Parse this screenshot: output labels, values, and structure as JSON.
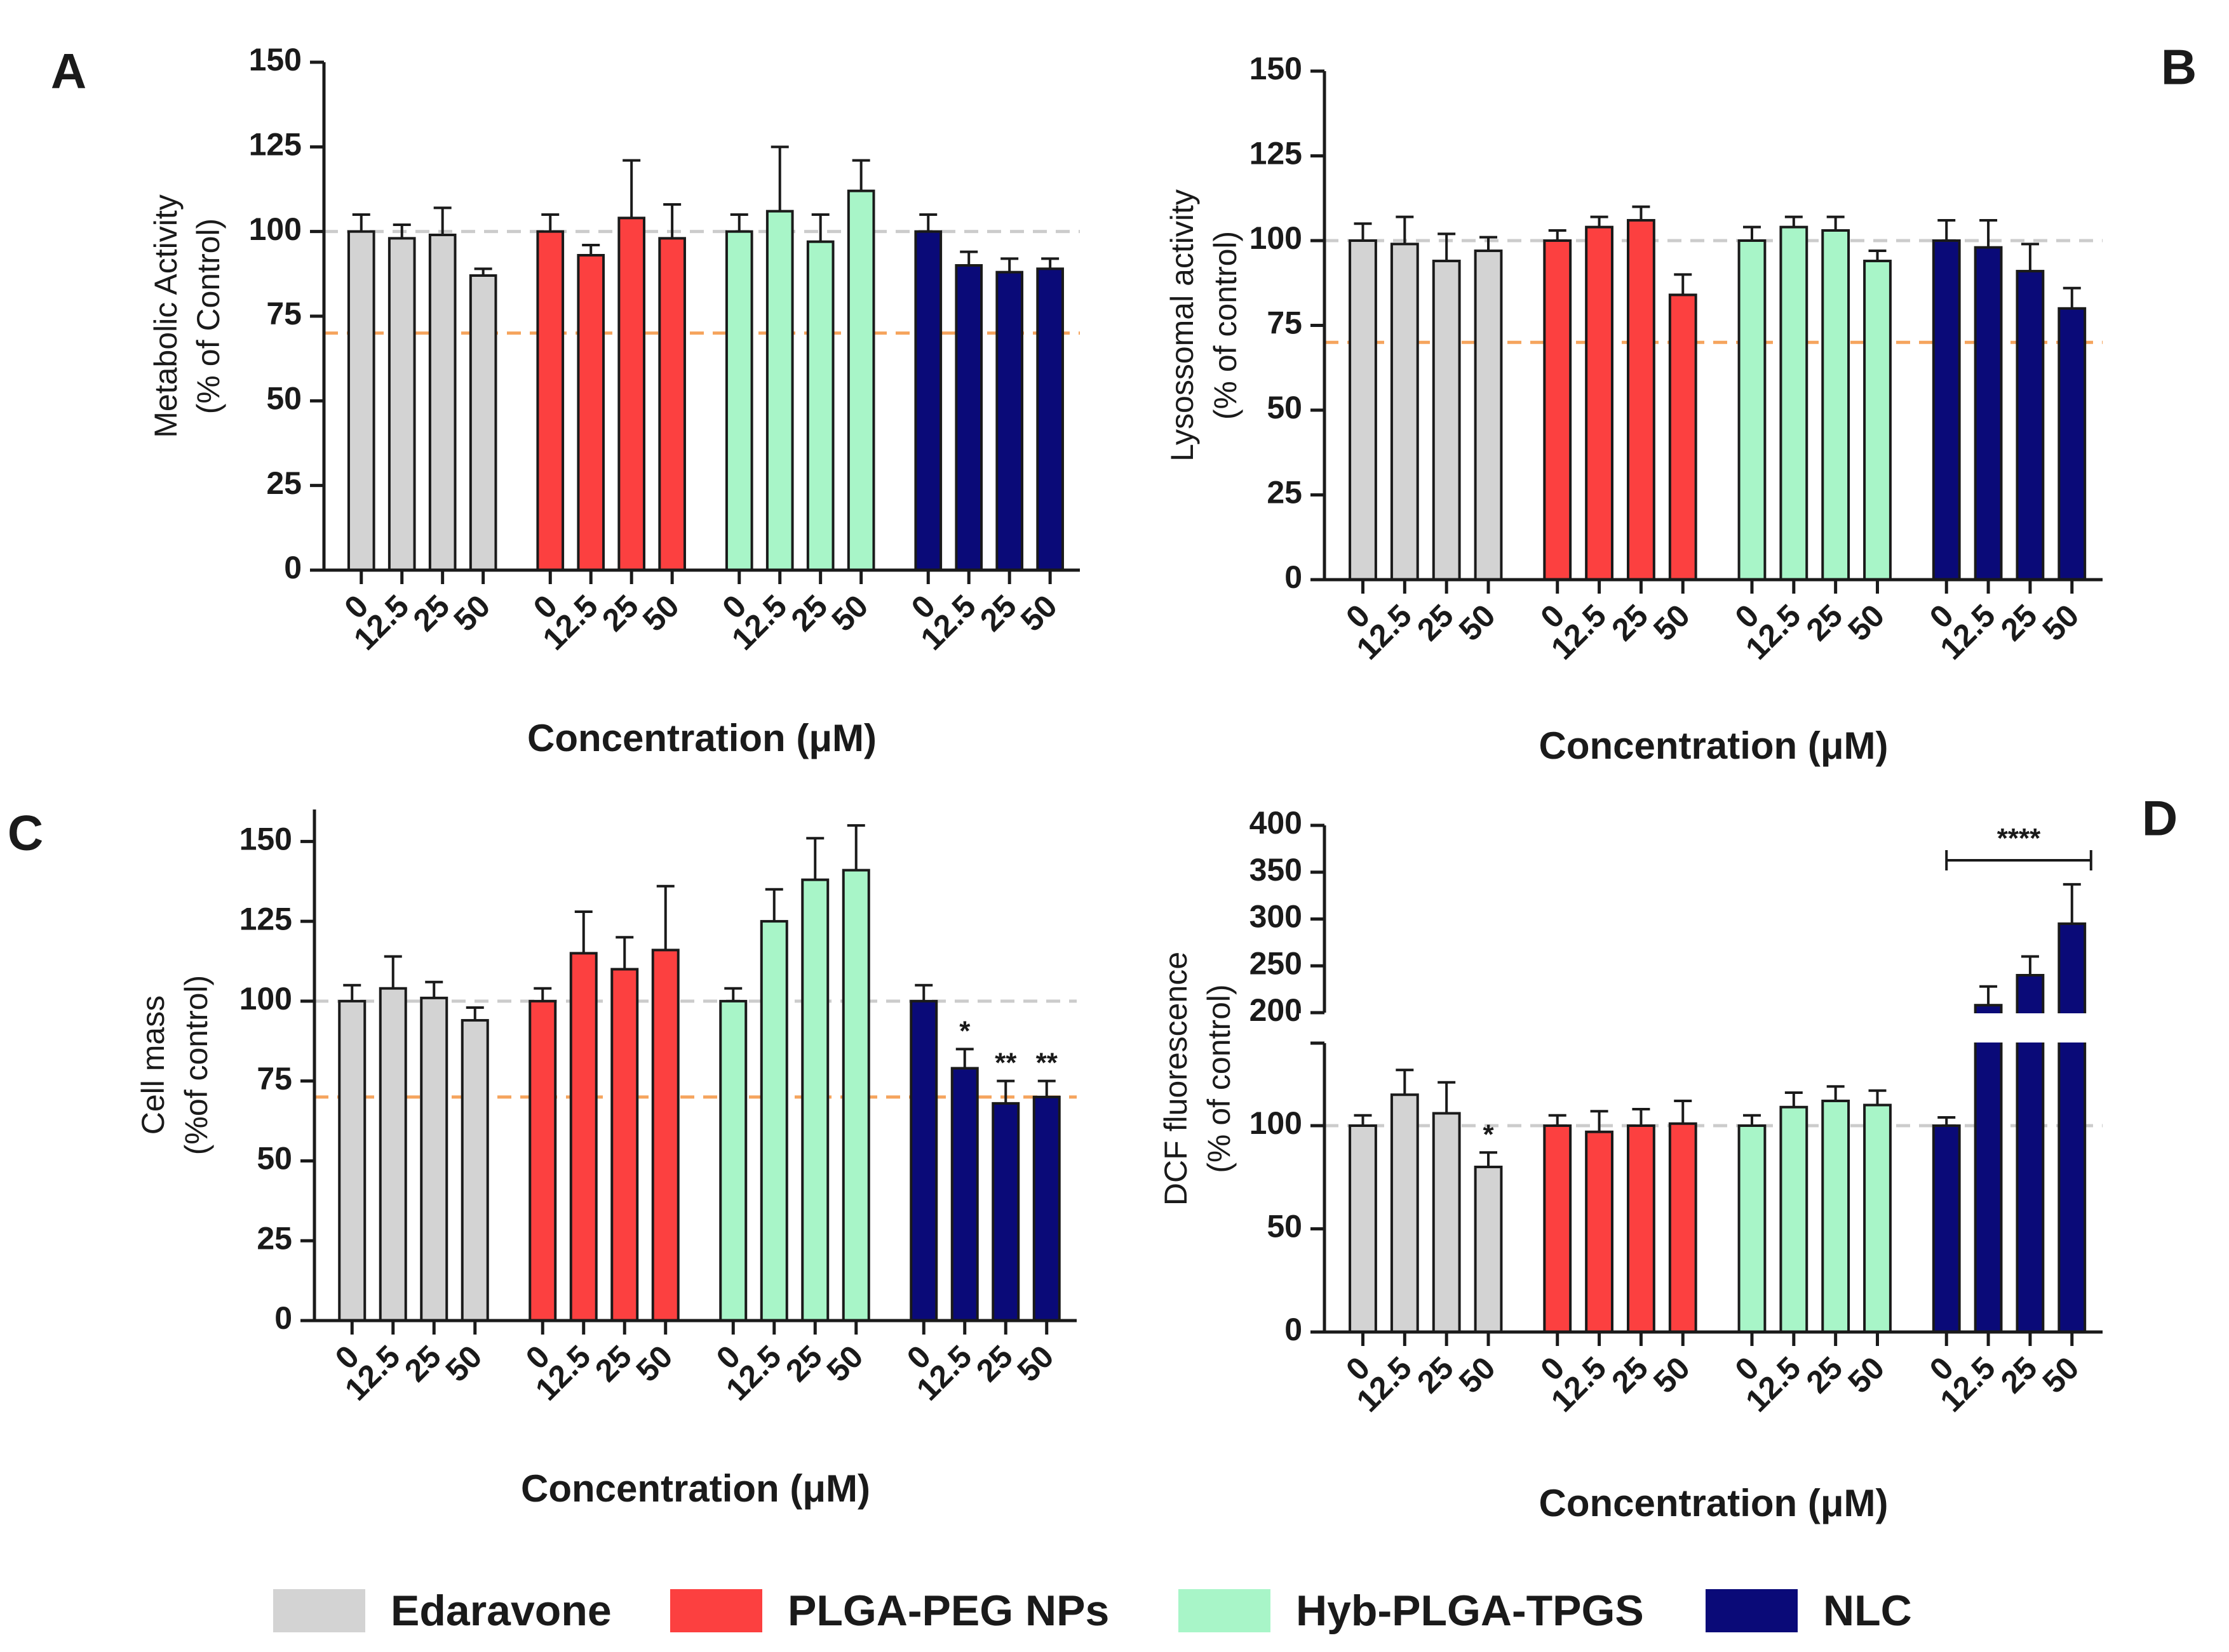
{
  "colors": {
    "Edaravone": "#d3d3d3",
    "PLGA-PEG NPs": "#fc4040",
    "Hyb-PLGA-TPGS": "#a8f5c8",
    "NLC": "#0a0a78",
    "control_line": "#cccccc",
    "threshold_line": "#f5a45d"
  },
  "legend": {
    "items": [
      {
        "label": "Edaravone",
        "color": "#d3d3d3"
      },
      {
        "label": "PLGA-PEG NPs",
        "color": "#fc4040"
      },
      {
        "label": "Hyb-PLGA-TPGS",
        "color": "#a8f5c8"
      },
      {
        "label": "NLC",
        "color": "#0a0a78"
      }
    ]
  },
  "chart_data": [
    {
      "panel": "A",
      "type": "bar",
      "ylabel_line1": "Metabolic Activity",
      "ylabel_line2": "(% of Control)",
      "xlabel": "Concentration (μM)",
      "ylim": [
        0,
        150
      ],
      "yticks": [
        "0",
        "25",
        "50",
        "75",
        "100",
        "125",
        "150"
      ],
      "categories": [
        "0",
        "12.5",
        "25",
        "50"
      ],
      "control_line": 100,
      "threshold_line": 70,
      "series": [
        {
          "name": "Edaravone",
          "values": [
            100,
            98,
            99,
            87
          ],
          "errors": [
            5,
            4,
            8,
            2
          ],
          "annotations": [
            "",
            "",
            "",
            ""
          ]
        },
        {
          "name": "PLGA-PEG NPs",
          "values": [
            100,
            93,
            104,
            98
          ],
          "errors": [
            5,
            3,
            17,
            10
          ],
          "annotations": [
            "",
            "",
            "",
            ""
          ]
        },
        {
          "name": "Hyb-PLGA-TPGS",
          "values": [
            100,
            106,
            97,
            112
          ],
          "errors": [
            5,
            19,
            8,
            9
          ],
          "annotations": [
            "",
            "",
            "",
            ""
          ]
        },
        {
          "name": "NLC",
          "values": [
            100,
            90,
            88,
            89
          ],
          "errors": [
            5,
            4,
            4,
            3
          ],
          "annotations": [
            "",
            "",
            "",
            ""
          ]
        }
      ]
    },
    {
      "panel": "B",
      "type": "bar",
      "ylabel_line1": "Lysossomal activity",
      "ylabel_line2": "(% of control)",
      "xlabel": "Concentration (μM)",
      "ylim": [
        0,
        150
      ],
      "yticks": [
        "0",
        "25",
        "50",
        "75",
        "100",
        "125",
        "150"
      ],
      "categories": [
        "0",
        "12.5",
        "25",
        "50"
      ],
      "control_line": 100,
      "threshold_line": 70,
      "series": [
        {
          "name": "Edaravone",
          "values": [
            100,
            99,
            94,
            97
          ],
          "errors": [
            5,
            8,
            8,
            4
          ],
          "annotations": [
            "",
            "",
            "",
            ""
          ]
        },
        {
          "name": "PLGA-PEG NPs",
          "values": [
            100,
            104,
            106,
            84
          ],
          "errors": [
            3,
            3,
            4,
            6
          ],
          "annotations": [
            "",
            "",
            "",
            ""
          ]
        },
        {
          "name": "Hyb-PLGA-TPGS",
          "values": [
            100,
            104,
            103,
            94
          ],
          "errors": [
            4,
            3,
            4,
            3
          ],
          "annotations": [
            "",
            "",
            "",
            ""
          ]
        },
        {
          "name": "NLC",
          "values": [
            100,
            98,
            91,
            80
          ],
          "errors": [
            6,
            8,
            8,
            6
          ],
          "annotations": [
            "",
            "",
            "",
            ""
          ]
        }
      ]
    },
    {
      "panel": "C",
      "type": "bar",
      "ylabel_line1": "Cell mass",
      "ylabel_line2": "(%of control)",
      "xlabel": "Concentration (μM)",
      "ylim": [
        0,
        160
      ],
      "yticks": [
        "0",
        "25",
        "50",
        "75",
        "100",
        "125",
        "150"
      ],
      "categories": [
        "0",
        "12.5",
        "25",
        "50"
      ],
      "control_line": 100,
      "threshold_line": 70,
      "series": [
        {
          "name": "Edaravone",
          "values": [
            100,
            104,
            101,
            94
          ],
          "errors": [
            5,
            10,
            5,
            4
          ],
          "annotations": [
            "",
            "",
            "",
            ""
          ]
        },
        {
          "name": "PLGA-PEG NPs",
          "values": [
            100,
            115,
            110,
            116
          ],
          "errors": [
            4,
            13,
            10,
            20
          ],
          "annotations": [
            "",
            "",
            "",
            ""
          ]
        },
        {
          "name": "Hyb-PLGA-TPGS",
          "values": [
            100,
            125,
            138,
            141
          ],
          "errors": [
            4,
            10,
            13,
            14
          ],
          "annotations": [
            "",
            "",
            "",
            ""
          ]
        },
        {
          "name": "NLC",
          "values": [
            100,
            79,
            68,
            70
          ],
          "errors": [
            5,
            6,
            7,
            5
          ],
          "annotations": [
            "",
            "*",
            "**",
            "**"
          ]
        }
      ]
    },
    {
      "panel": "D",
      "type": "bar",
      "ylabel_line1": "DCF fluorescence",
      "ylabel_line2": "(% of control)",
      "xlabel": "Concentration (μM)",
      "ylim": [
        0,
        400
      ],
      "yaxis_break": [
        140,
        200
      ],
      "yticks": [
        "0",
        "50",
        "100",
        "200",
        "250",
        "300",
        "350",
        "400"
      ],
      "categories": [
        "0",
        "12.5",
        "25",
        "50"
      ],
      "control_line": 100,
      "significance_bracket": {
        "group": "NLC",
        "label": "****"
      },
      "series": [
        {
          "name": "Edaravone",
          "values": [
            100,
            115,
            106,
            80
          ],
          "errors": [
            5,
            12,
            15,
            7
          ],
          "annotations": [
            "",
            "",
            "",
            "*"
          ]
        },
        {
          "name": "PLGA-PEG NPs",
          "values": [
            100,
            97,
            100,
            101
          ],
          "errors": [
            5,
            10,
            8,
            11
          ],
          "annotations": [
            "",
            "",
            "",
            ""
          ]
        },
        {
          "name": "Hyb-PLGA-TPGS",
          "values": [
            100,
            109,
            112,
            110
          ],
          "errors": [
            5,
            7,
            7,
            7
          ],
          "annotations": [
            "",
            "",
            "",
            ""
          ]
        },
        {
          "name": "NLC",
          "values": [
            100,
            208,
            240,
            295
          ],
          "errors": [
            4,
            20,
            20,
            42
          ],
          "annotations": [
            "",
            "",
            "",
            ""
          ]
        }
      ]
    }
  ]
}
